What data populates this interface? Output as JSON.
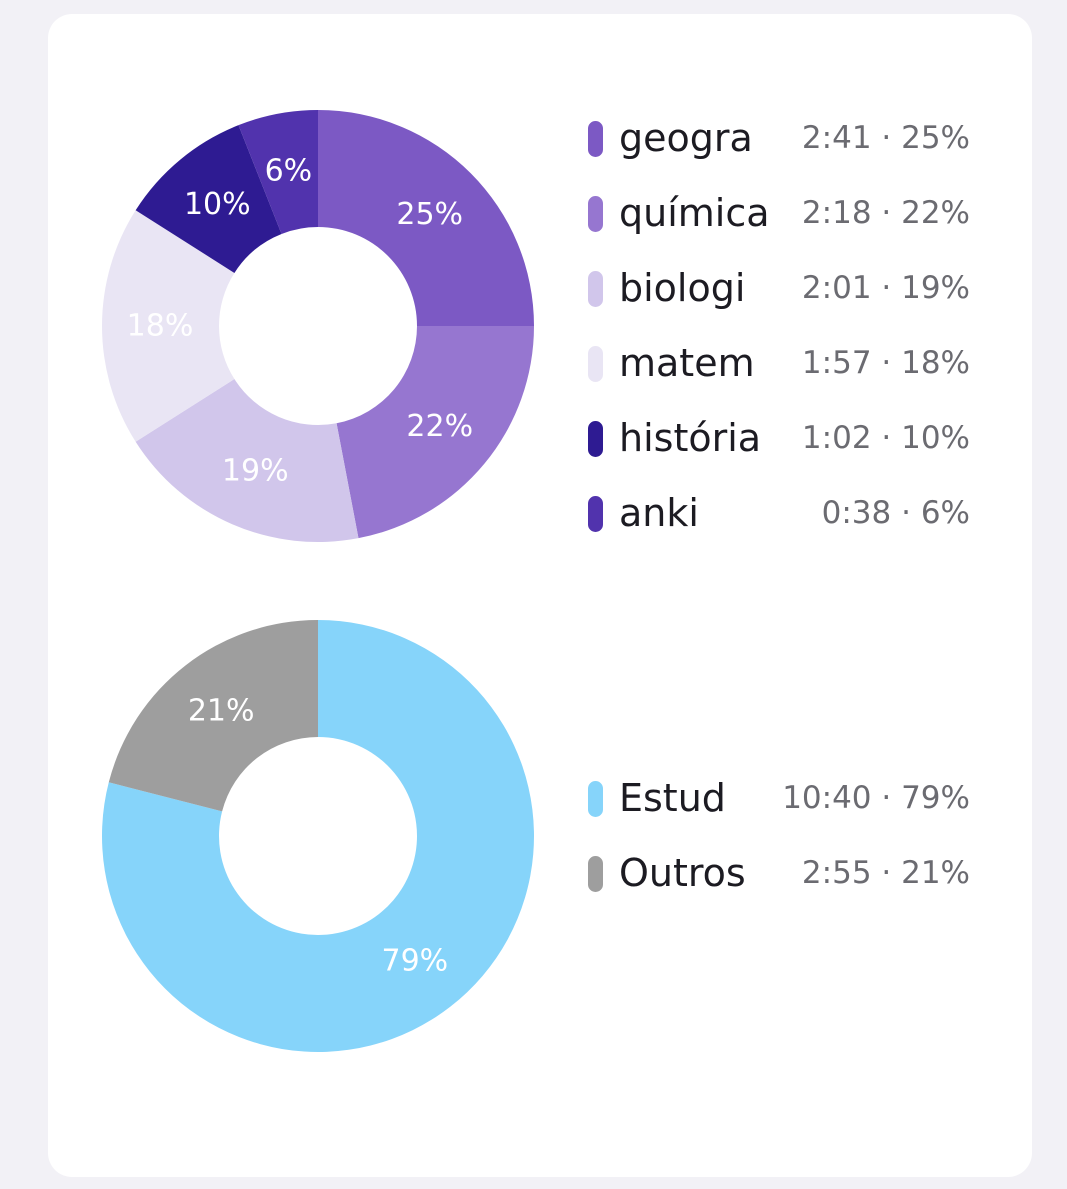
{
  "chart_data": [
    {
      "type": "pie",
      "donut": true,
      "categories": [
        "geogra",
        "química",
        "biologi",
        "matem",
        "história",
        "anki"
      ],
      "values": [
        25,
        22,
        19,
        18,
        10,
        6
      ],
      "slice_labels": [
        "25%",
        "22%",
        "19%",
        "18%",
        "10%",
        "6%"
      ],
      "durations": [
        "2:41",
        "2:18",
        "2:01",
        "1:57",
        "1:02",
        "0:38"
      ],
      "colors": [
        "#7c59c4",
        "#9676d0",
        "#d1c6eb",
        "#e9e5f4",
        "#2e1b92",
        "#5133ad"
      ],
      "label_colors": [
        "#ffffff",
        "#ffffff",
        "#ffffff",
        "#ffffff",
        "#ffffff",
        "#ffffff"
      ],
      "legend": [
        {
          "name": "geogra",
          "value": "2:41 · 25%"
        },
        {
          "name": "química",
          "value": "2:18 · 22%"
        },
        {
          "name": "biologi",
          "value": "2:01 · 19%"
        },
        {
          "name": "matem",
          "value": "1:57 · 18%"
        },
        {
          "name": "história",
          "value": "1:02 · 10%"
        },
        {
          "name": "anki",
          "value": "0:38 · 6%"
        }
      ],
      "legend_placement": "right"
    },
    {
      "type": "pie",
      "donut": true,
      "categories": [
        "Estud",
        "Outros"
      ],
      "values": [
        79,
        21
      ],
      "slice_labels": [
        "79%",
        "21%"
      ],
      "durations": [
        "10:40",
        "2:55"
      ],
      "colors": [
        "#86d4fa",
        "#9e9e9e"
      ],
      "label_colors": [
        "#ffffff",
        "#ffffff"
      ],
      "legend": [
        {
          "name": "Estud",
          "value": "10:40 · 79%"
        },
        {
          "name": "Outros",
          "value": "2:55 · 21%"
        }
      ],
      "legend_placement": "right"
    }
  ]
}
